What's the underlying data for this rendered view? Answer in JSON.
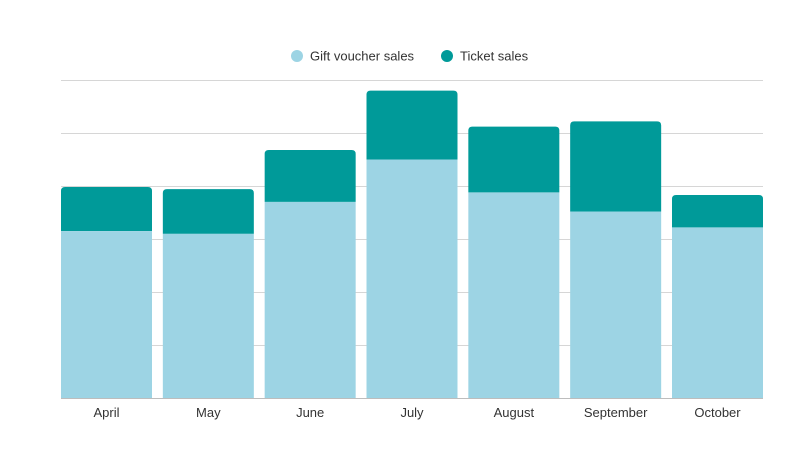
{
  "chart_data": {
    "type": "bar",
    "stacked": true,
    "categories": [
      "April",
      "May",
      "June",
      "July",
      "August",
      "September",
      "October"
    ],
    "series": [
      {
        "name": "Gift voucher sales",
        "color": "#9dd4e4",
        "values": [
          31.5,
          31.0,
          37.0,
          45.0,
          38.8,
          35.2,
          32.2
        ]
      },
      {
        "name": "Ticket sales",
        "color": "#009a99",
        "values": [
          8.3,
          8.4,
          9.8,
          13.0,
          12.4,
          17.0,
          6.1
        ]
      }
    ],
    "ylim": [
      0,
      60
    ],
    "yticks": [
      0,
      10,
      20,
      30,
      40,
      50,
      60
    ],
    "grid": true,
    "legend": "top-center",
    "title": "",
    "xlabel": "",
    "ylabel": ""
  }
}
